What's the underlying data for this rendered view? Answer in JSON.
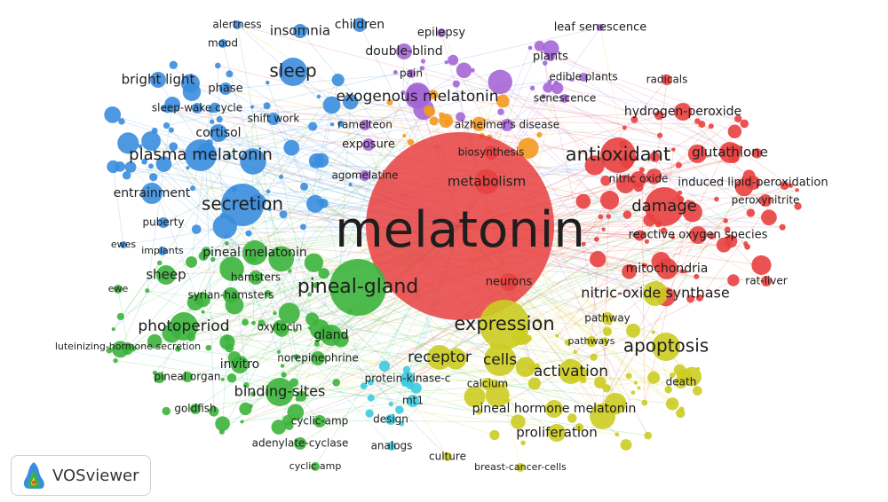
{
  "nodes": [
    "alertness",
    "mood",
    "insomnia",
    "children",
    "sleep",
    "bright light",
    "phase",
    "sleep-wake cycle",
    "shift work",
    "cortisol",
    "plasma melatonin",
    "entrainment",
    "secretion",
    "puberty",
    "ewes",
    "implants",
    "epilepsy",
    "double-blind",
    "leaf senescence",
    "plants",
    "edible plants",
    "pain",
    "exogenous melatonin",
    "senescence",
    "ramelteon",
    "alzheimer's disease",
    "exposure",
    "agomelatine",
    "radicals",
    "hydrogen-peroxide",
    "antioxidant",
    "glutathione",
    "biosynthesis",
    "metabolism",
    "nitric oxide",
    "induced lipid-peroxidation",
    "damage",
    "peroxynitrite",
    "reactive oxygen species",
    "mitochondria",
    "rat-liver",
    "melatonin",
    "neurons",
    "pineal melatonin",
    "sheep",
    "hamsters",
    "ewe",
    "syrian-hamsters",
    "pineal-gland",
    "photoperiod",
    "oxytocin",
    "luteinizing-hormone secretion",
    "gland",
    "norepinephrine",
    "invitro",
    "pineal organ",
    "binding-sites",
    "goldfish",
    "cyclic-amp",
    "adenylate-cyclase",
    "cyclic amp",
    "protein-kinase-c",
    "mt1",
    "design",
    "analogs",
    "nitric-oxide synthase",
    "expression",
    "pathway",
    "pathways",
    "apoptosis",
    "receptor",
    "cells",
    "activation",
    "calcium",
    "death",
    "pineal hormone melatonin",
    "proliferation",
    "culture",
    "breast-cancer-cells"
  ],
  "logo": "VOSviewer"
}
